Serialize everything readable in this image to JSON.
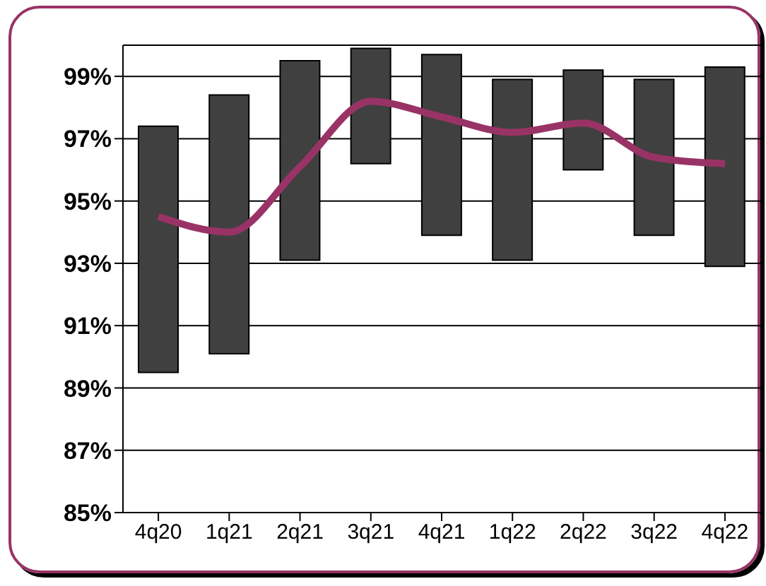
{
  "chart_data": {
    "type": "bar",
    "categories": [
      "4q20",
      "1q21",
      "2q21",
      "3q21",
      "4q21",
      "1q22",
      "2q22",
      "3q22",
      "4q22"
    ],
    "series": [
      {
        "color": "#404040",
        "base": [
          89.5,
          90.1,
          93.1,
          96.2,
          93.9,
          93.1,
          96.0,
          93.9,
          92.9
        ],
        "values": [
          7.9,
          8.3,
          6.4,
          3.7,
          5.8,
          5.8,
          3.2,
          5.0,
          6.4
        ]
      },
      {
        "type": "line",
        "color": "#993366",
        "values": [
          94.5,
          94.0,
          96.1,
          98.2,
          97.7,
          97.2,
          97.5,
          96.4,
          96.2
        ]
      }
    ],
    "ylim": [
      85,
      100
    ],
    "yticks": [
      {
        "value": 85,
        "label": "85%"
      },
      {
        "value": 87,
        "label": "87%"
      },
      {
        "value": 89,
        "label": "89%"
      },
      {
        "value": 91,
        "label": "91%"
      },
      {
        "value": 93,
        "label": "93%"
      },
      {
        "value": 95,
        "label": "95%"
      },
      {
        "value": 97,
        "label": "97%"
      },
      {
        "value": 99,
        "label": "99%"
      }
    ],
    "grid": "y",
    "legend": false,
    "marker": "none"
  }
}
